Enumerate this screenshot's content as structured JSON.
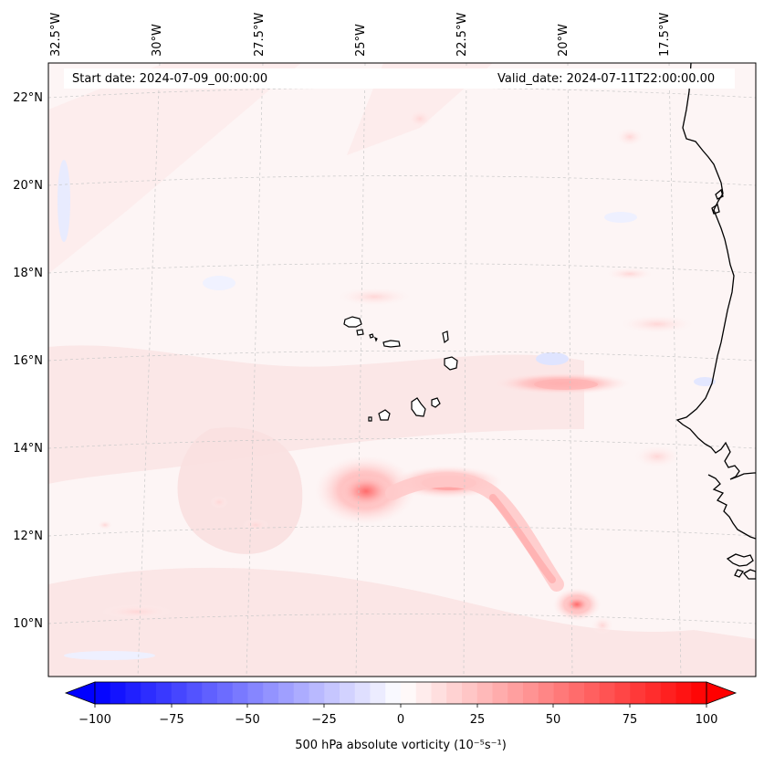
{
  "map": {
    "start_date": "Start date: 2024-07-09_00:00:00",
    "valid_date": "Valid_date: 2024-07-11T22:00:00.00",
    "lon_labels": [
      "32.5°W",
      "30°W",
      "27.5°W",
      "25°W",
      "22.5°W",
      "20°W",
      "17.5°W"
    ],
    "lat_labels": [
      "22°N",
      "20°N",
      "18°N",
      "16°N",
      "14°N",
      "12°N",
      "10°N"
    ],
    "features": [
      "vorticity-field",
      "coastline-west-africa",
      "cape-verde-islands",
      "gridlines"
    ]
  },
  "colorbar": {
    "label": "500 hPa absolute vorticity (10⁻⁵s⁻¹)",
    "ticks": [
      "−100",
      "−75",
      "−50",
      "−25",
      "0",
      "25",
      "50",
      "75",
      "100"
    ],
    "min": -100,
    "max": 100,
    "color_low": "#0000ff",
    "color_mid": "#ffffff",
    "color_high": "#ff0000"
  }
}
